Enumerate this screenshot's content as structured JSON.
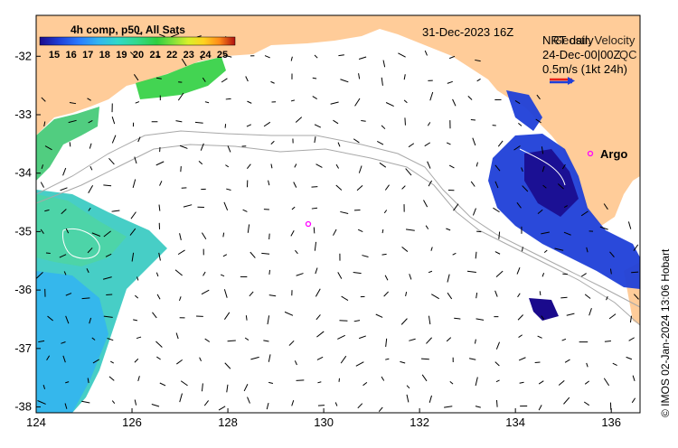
{
  "map": {
    "lon_range": [
      124,
      136.6
    ],
    "lat_range": [
      -38.1,
      -31.3
    ],
    "x_ticks": [
      "124",
      "126",
      "128",
      "130",
      "132",
      "134",
      "136"
    ],
    "y_ticks": [
      "-32",
      "-33",
      "-34",
      "-35",
      "-36",
      "-37",
      "-38"
    ]
  },
  "colorbar": {
    "title": "4h comp, p50, All Sats",
    "ticks": [
      "15",
      "16",
      "17",
      "18",
      "19",
      "20",
      "21",
      "22",
      "23",
      "24",
      "25"
    ],
    "colors": [
      "#1a0a8c",
      "#1f3fd8",
      "#2a7bff",
      "#33b5f0",
      "#2fd9c8",
      "#33d98a",
      "#2fcf3f",
      "#7fe03a",
      "#d8f02a",
      "#ffd21f",
      "#ff8a1a",
      "#e8401a",
      "#b01010"
    ]
  },
  "header": {
    "date": "31-Dec-2023 16Z"
  },
  "legend": {
    "line1_a": "NRT daily",
    "line1_b": "Geostr. Velocity",
    "line2_a": "24-Dec-00|00Z",
    "line2_b": "QC",
    "scale": "0.5m/s (1kt 24h)"
  },
  "argo": {
    "label": "Argo"
  },
  "credit": "© IMOS 02-Jan-2024 13:06 Hobart",
  "colors": {
    "land": "#ffcc99",
    "ocean": "#ffffff",
    "arrow_red": "#e8201a",
    "arrow_blue": "#1f3fd8",
    "argo": "#ff00ff"
  }
}
